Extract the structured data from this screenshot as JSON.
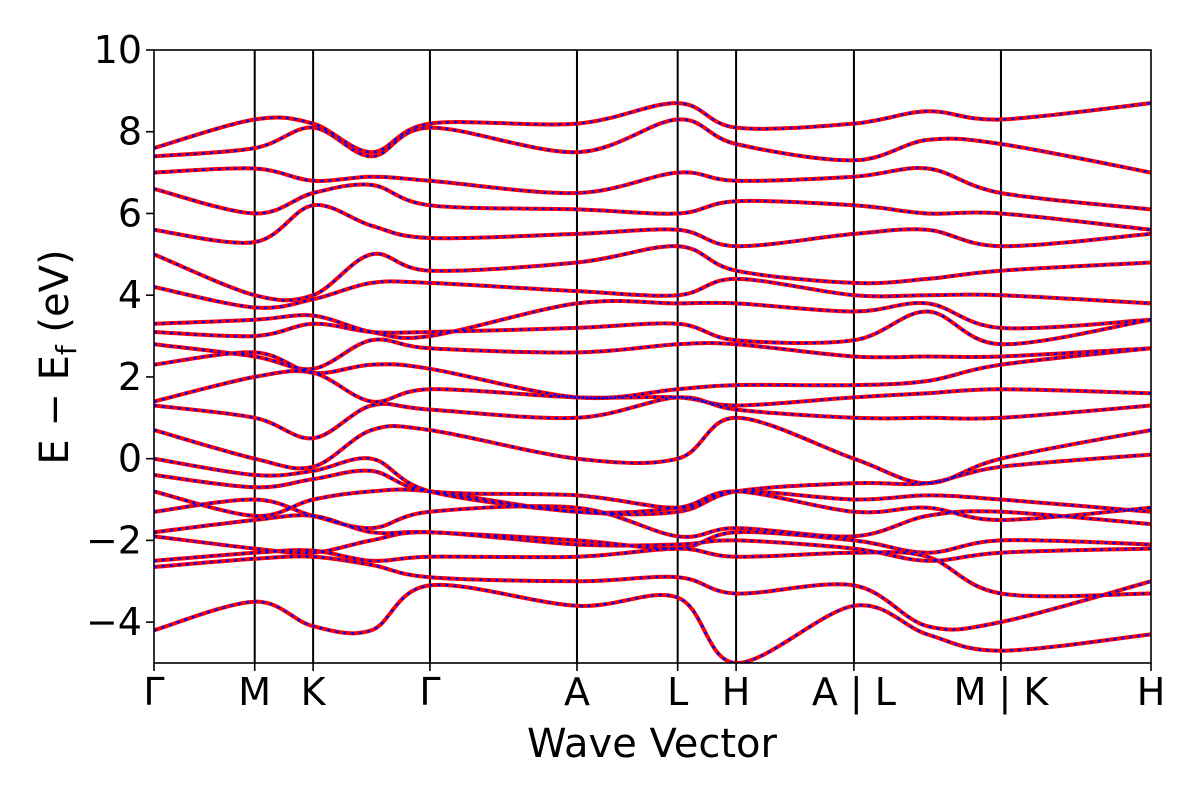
{
  "chart_data": {
    "type": "line",
    "title": "",
    "xlabel": "Wave Vector",
    "ylabel": "E − E",
    "ylabel_subscript": "f",
    "ylabel_unit": " (eV)",
    "ylim": [
      -5,
      10
    ],
    "yticks": [
      -4,
      -2,
      0,
      2,
      4,
      6,
      8,
      10
    ],
    "ytick_labels": [
      "−4",
      "−2",
      "0",
      "2",
      "4",
      "6",
      "8",
      "10"
    ],
    "x_range": [
      0,
      9.9
    ],
    "kpoints": [
      {
        "label": "Γ",
        "x": 0.0
      },
      {
        "label": "M",
        "x": 1.0
      },
      {
        "label": "K",
        "x": 1.58
      },
      {
        "label": "Γ",
        "x": 2.74
      },
      {
        "label": "A",
        "x": 4.2
      },
      {
        "label": "L",
        "x": 5.2
      },
      {
        "label": "H",
        "x": 5.78
      },
      {
        "label": "A | L",
        "x": 6.95
      },
      {
        "label": "M | K",
        "x": 8.41
      },
      {
        "label": "H",
        "x": 9.9
      }
    ],
    "colors": {
      "series_a": "#ff0000",
      "series_b": "#0000ff",
      "kpoint_lines": "#000000"
    },
    "series": [
      {
        "style": "solid-red",
        "values": [
          [
            -4.2,
            -3.5,
            -4.1,
            -4.2,
            -3.1,
            -3.6,
            -3.4,
            -5.0,
            -3.6,
            -4.3,
            -4.7,
            -4.3
          ],
          [
            -2.65,
            -2.45,
            -2.4,
            -2.6,
            -2.9,
            -3.0,
            -2.9,
            -3.3,
            -3.1,
            -4.1,
            -4.0,
            -3.0
          ],
          [
            -2.5,
            -2.3,
            -2.25,
            -2.5,
            -2.4,
            -2.4,
            -2.2,
            -2.4,
            -2.3,
            -2.4,
            -3.3,
            -3.3
          ],
          [
            -1.9,
            -2.2,
            -2.3,
            -2.0,
            -1.8,
            -2.1,
            -2.1,
            -2.0,
            -2.2,
            -2.5,
            -2.3,
            -2.2
          ],
          [
            -1.8,
            -1.5,
            -1.4,
            -1.8,
            -1.8,
            -2.0,
            -2.2,
            -1.8,
            -2.0,
            -2.3,
            -2.0,
            -2.1
          ],
          [
            -1.3,
            -1.0,
            -1.4,
            -1.7,
            -1.3,
            -1.2,
            -1.9,
            -1.7,
            -1.9,
            -1.4,
            -1.3,
            -1.6
          ],
          [
            -0.8,
            -1.4,
            -1.0,
            -0.8,
            -0.8,
            -1.3,
            -1.2,
            -0.8,
            -1.3,
            -1.2,
            -1.5,
            -1.2
          ],
          [
            -0.4,
            -0.7,
            -0.5,
            -0.3,
            -0.8,
            -0.9,
            -1.2,
            -0.8,
            -1.0,
            -0.9,
            -1.0,
            -1.3
          ],
          [
            0.0,
            -0.4,
            -0.3,
            0.0,
            -0.8,
            -1.3,
            -1.3,
            -0.8,
            -0.6,
            -0.6,
            -0.2,
            0.1
          ],
          [
            0.7,
            0.0,
            -0.2,
            0.7,
            0.7,
            0.0,
            0.0,
            1.0,
            0.0,
            -0.6,
            0.0,
            0.7
          ],
          [
            1.3,
            1.0,
            0.5,
            1.3,
            1.2,
            1.0,
            1.5,
            1.2,
            1.0,
            1.0,
            1.0,
            1.3
          ],
          [
            1.4,
            2.0,
            2.1,
            1.4,
            1.7,
            1.5,
            1.5,
            1.3,
            1.5,
            1.6,
            1.7,
            1.6
          ],
          [
            2.3,
            2.6,
            2.1,
            2.3,
            2.2,
            1.5,
            1.7,
            1.8,
            1.8,
            1.9,
            2.3,
            2.7
          ],
          [
            2.8,
            2.5,
            2.2,
            2.9,
            2.7,
            2.6,
            2.8,
            2.8,
            2.5,
            2.5,
            2.5,
            2.7
          ],
          [
            3.1,
            3.0,
            3.3,
            3.1,
            3.1,
            3.2,
            3.3,
            2.9,
            2.9,
            3.6,
            2.8,
            3.4
          ],
          [
            3.3,
            3.4,
            3.5,
            3.1,
            3.0,
            3.8,
            3.8,
            3.8,
            3.6,
            3.8,
            3.2,
            3.4
          ],
          [
            4.2,
            3.7,
            3.9,
            4.3,
            4.3,
            4.1,
            4.0,
            4.4,
            4.0,
            4.0,
            4.0,
            3.8
          ],
          [
            5.0,
            4.0,
            4.0,
            5.0,
            4.6,
            4.8,
            5.2,
            4.6,
            4.3,
            4.4,
            4.6,
            4.8
          ],
          [
            5.6,
            5.3,
            6.2,
            5.7,
            5.4,
            5.5,
            5.6,
            5.2,
            5.5,
            5.6,
            5.2,
            5.5
          ],
          [
            6.6,
            6.0,
            6.5,
            6.7,
            6.2,
            6.1,
            6.0,
            6.3,
            6.2,
            6.0,
            6.0,
            5.6
          ],
          [
            7.0,
            7.1,
            6.8,
            6.9,
            6.8,
            6.5,
            7.0,
            6.8,
            6.9,
            7.1,
            6.5,
            6.1
          ],
          [
            7.4,
            7.6,
            8.1,
            7.4,
            8.1,
            7.5,
            8.3,
            7.7,
            7.3,
            7.8,
            7.7,
            7.0
          ],
          [
            7.6,
            8.3,
            8.2,
            7.5,
            8.2,
            8.2,
            8.7,
            8.1,
            8.2,
            8.5,
            8.3,
            8.7
          ]
        ]
      },
      {
        "style": "dashed-blue",
        "values": "same as solid-red"
      }
    ]
  }
}
